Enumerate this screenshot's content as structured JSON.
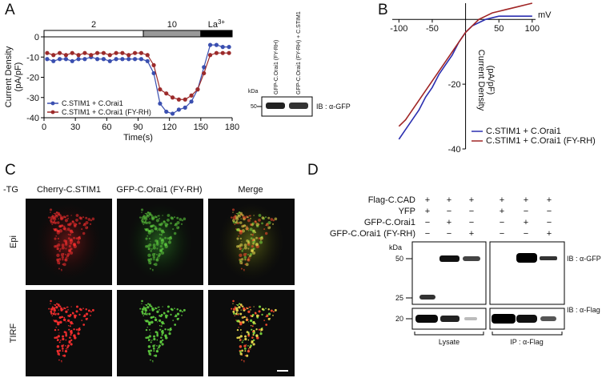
{
  "panel_labels": [
    "A",
    "B",
    "C",
    "D"
  ],
  "chart_data": [
    {
      "type": "line",
      "marker": "circle",
      "legend": "lower left",
      "xlabel": "Time(s)",
      "ylabel": [
        "Current Density",
        "(pA/pF)"
      ],
      "x": [
        3,
        9,
        15,
        21,
        27,
        33,
        39,
        45,
        51,
        57,
        63,
        69,
        75,
        81,
        87,
        93,
        99,
        105,
        111,
        117,
        123,
        129,
        135,
        141,
        147,
        153,
        159,
        165,
        171,
        177
      ],
      "series": [
        {
          "name": "C.STIM1 + C.Orai1",
          "color": "#3a4fb0",
          "values": [
            -11,
            -12,
            -11,
            -11,
            -12,
            -11,
            -11,
            -10,
            -11,
            -11,
            -12,
            -11,
            -11,
            -11,
            -11,
            -11,
            -12,
            -18,
            -33,
            -37,
            -38,
            -36,
            -35,
            -32,
            -26,
            -15,
            -4,
            -4,
            -5,
            -5
          ]
        },
        {
          "name": "C.STIM1 + C.Orai1 (FY-RH)",
          "color": "#9c2b2b",
          "values": [
            -8,
            -9,
            -8,
            -9,
            -8,
            -9,
            -8,
            -9,
            -8,
            -8,
            -9,
            -8,
            -8,
            -9,
            -8,
            -8,
            -9,
            -14,
            -26,
            -28,
            -30,
            -31,
            -31,
            -29,
            -26,
            -18,
            -9,
            -8,
            -8,
            -8
          ]
        }
      ],
      "xlim": [
        0,
        180
      ],
      "xticks": [
        0,
        30,
        60,
        90,
        120,
        150,
        180
      ],
      "ylim": [
        -40,
        0
      ],
      "yticks": [
        0,
        -10,
        -20,
        -30,
        -40
      ],
      "solution_bar": [
        {
          "label": "2",
          "start": 0,
          "end": 95,
          "color": "#ffffff"
        },
        {
          "label": "10",
          "start": 95,
          "end": 150,
          "color": "#999999"
        },
        {
          "label": "La",
          "superscript": "3+",
          "start": 150,
          "end": 180,
          "color": "#000000"
        }
      ]
    },
    {
      "type": "line",
      "marker": "none",
      "legend": "lower right",
      "axes_cross_at_origin": true,
      "xlabel": "mV",
      "ylabel": [
        "Current Density",
        "(pA/pF)"
      ],
      "x": [
        -100,
        -90,
        -80,
        -70,
        -60,
        -50,
        -40,
        -30,
        -20,
        -10,
        0,
        10,
        20,
        30,
        40,
        50,
        60,
        70,
        80,
        90,
        100
      ],
      "series": [
        {
          "name": "C.STIM1 + C.Orai1",
          "color": "#2b2fb0",
          "values": [
            -37,
            -34,
            -31,
            -28,
            -24,
            -21,
            -17,
            -14,
            -11,
            -7,
            -4,
            -2,
            -1,
            0,
            0.5,
            1,
            1,
            1,
            1,
            1,
            1
          ]
        },
        {
          "name": "C.STIM1 + C.Orai1 (FY-RH)",
          "color": "#a02525",
          "values": [
            -33,
            -31,
            -28,
            -25,
            -22,
            -19,
            -16,
            -13,
            -10,
            -7,
            -4,
            -2,
            0,
            1,
            2,
            2.5,
            3,
            3.5,
            4,
            4.5,
            5
          ]
        }
      ],
      "xlim": [
        -110,
        105
      ],
      "xticks": [
        -100,
        -50,
        50,
        100
      ],
      "ylim": [
        -40,
        5
      ],
      "yticks": [
        -20,
        -40
      ]
    }
  ],
  "blot_a": {
    "column_labels": [
      "GFP-C.Orai1 (FY-RH)",
      "GFP-C.Orai1 (FY-RH) + C.STIM1"
    ],
    "kda": "kDa",
    "marker": "50",
    "antibody": "IB : α-GFP"
  },
  "panel_c": {
    "condition": "-TG",
    "columns": [
      "Cherry-C.STIM1",
      "GFP-C.Orai1 (FY-RH)",
      "Merge"
    ],
    "rows": [
      "Epi",
      "TIRF"
    ]
  },
  "panel_d": {
    "rows": [
      {
        "label": "Flag-C.CAD",
        "signs": [
          "+",
          "+",
          "+",
          "+",
          "+",
          "+"
        ]
      },
      {
        "label": "YFP",
        "signs": [
          "+",
          "−",
          "−",
          "+",
          "−",
          "−"
        ]
      },
      {
        "label": "GFP-C.Orai1",
        "signs": [
          "−",
          "+",
          "−",
          "−",
          "+",
          "−"
        ]
      },
      {
        "label": "GFP-C.Orai1 (FY-RH)",
        "signs": [
          "−",
          "−",
          "+",
          "−",
          "−",
          "+"
        ]
      }
    ],
    "kda": "kDa",
    "markers": [
      "50",
      "25",
      "20"
    ],
    "antibodies": [
      "IB : α-GFP",
      "IB : α-Flag"
    ],
    "groups": [
      "Lysate",
      "IP : α-Flag"
    ]
  }
}
